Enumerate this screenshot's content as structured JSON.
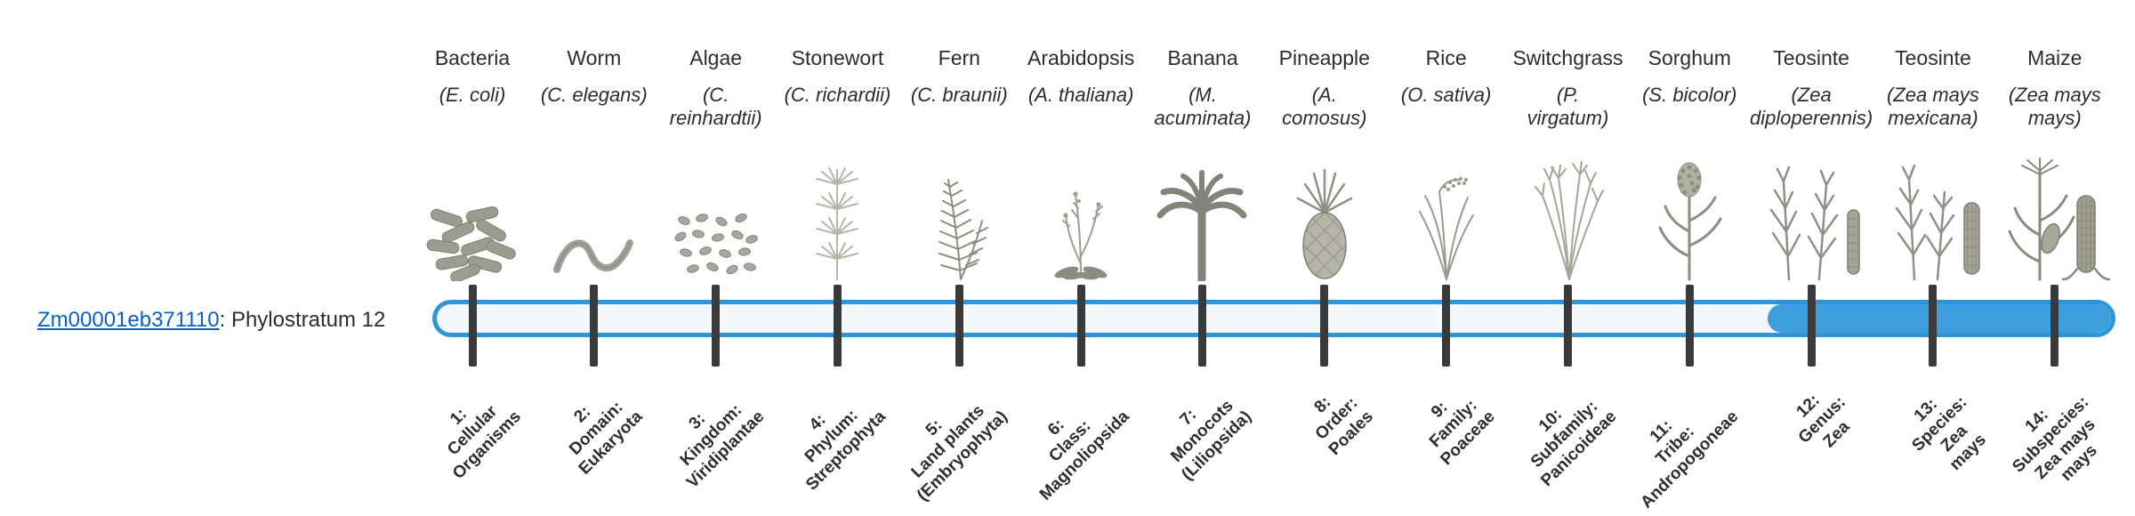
{
  "gene": {
    "id": "Zm00001eb371110",
    "suffix": ": Phylostratum 12",
    "phylostratum": 12
  },
  "colors": {
    "bar_outline": "#2e96d8",
    "bar_fill": "#3f9edd",
    "bar_background": "#f4f8fb",
    "tick": "#3a3a3a",
    "link": "#0a63c0",
    "text": "#2d2d2d"
  },
  "organisms": [
    {
      "common": "Bacteria",
      "sci": "(E. coli)",
      "icon": "bacteria-icon"
    },
    {
      "common": "Worm",
      "sci": "(C. elegans)",
      "icon": "worm-icon"
    },
    {
      "common": "Algae",
      "sci": "(C.\nreinhardtii)",
      "icon": "algae-icon"
    },
    {
      "common": "Stonewort",
      "sci": "(C. richardii)",
      "icon": "stonewort-icon"
    },
    {
      "common": "Fern",
      "sci": "(C. braunii)",
      "icon": "fern-icon"
    },
    {
      "common": "Arabidopsis",
      "sci": "(A. thaliana)",
      "icon": "arabidopsis-icon"
    },
    {
      "common": "Banana",
      "sci": "(M.\nacuminata)",
      "icon": "banana-icon"
    },
    {
      "common": "Pineapple",
      "sci": "(A.\ncomosus)",
      "icon": "pineapple-icon"
    },
    {
      "common": "Rice",
      "sci": "(O. sativa)",
      "icon": "rice-icon"
    },
    {
      "common": "Switchgrass",
      "sci": "(P.\nvirgatum)",
      "icon": "switchgrass-icon"
    },
    {
      "common": "Sorghum",
      "sci": "(S. bicolor)",
      "icon": "sorghum-icon"
    },
    {
      "common": "Teosinte",
      "sci": "(Zea\ndiploperennis)",
      "icon": "teosinte-diploperennis-icon"
    },
    {
      "common": "Teosinte",
      "sci": "(Zea mays\nmexicana)",
      "icon": "teosinte-mexicana-icon"
    },
    {
      "common": "Maize",
      "sci": "(Zea mays\nmays)",
      "icon": "maize-icon"
    }
  ],
  "strata": [
    {
      "label": "1:\nCellular\nOrganisms"
    },
    {
      "label": "2:\nDomain:\nEukaryota"
    },
    {
      "label": "3:\nKingdom:\nViridiplantae"
    },
    {
      "label": "4:\nPhylum:\nStreptophyta"
    },
    {
      "label": "5:\nLand plants\n(Embryophyta)"
    },
    {
      "label": "6:\nClass:\nMagnoliopsida"
    },
    {
      "label": "7:\nMonocots\n(Liliopsida)"
    },
    {
      "label": "8:\nOrder:\nPoales"
    },
    {
      "label": "9:\nFamily:\nPoaceae"
    },
    {
      "label": "10:\nSubfamily:\nPanicoideae"
    },
    {
      "label": "11:\nTribe:\nAndropogoneae"
    },
    {
      "label": "12:\nGenus:\nZea"
    },
    {
      "label": "13:\nSpecies:\nZea\nmays"
    },
    {
      "label": "14:\nSubspecies:\nZea mays\nmays"
    }
  ],
  "chart_data": {
    "type": "bar",
    "orientation": "horizontal",
    "title": "Zm00001eb371110: Phylostratum 12",
    "categories": [
      "1: Cellular Organisms",
      "2: Domain: Eukaryota",
      "3: Kingdom: Viridiplantae",
      "4: Phylum: Streptophyta",
      "5: Land plants (Embryophyta)",
      "6: Class: Magnoliopsida",
      "7: Monocots (Liliopsida)",
      "8: Order: Poales",
      "9: Family: Poaceae",
      "10: Subfamily: Panicoideae",
      "11: Tribe: Andropogoneae",
      "12: Genus: Zea",
      "13: Species: Zea mays",
      "14: Subspecies: Zea mays mays"
    ],
    "category_taxa": [
      "Bacteria (E. coli)",
      "Worm (C. elegans)",
      "Algae (C. reinhardtii)",
      "Stonewort (C. richardii)",
      "Fern (C. braunii)",
      "Arabidopsis (A. thaliana)",
      "Banana (M. acuminata)",
      "Pineapple (A. comosus)",
      "Rice (O. sativa)",
      "Switchgrass (P. virgatum)",
      "Sorghum (S. bicolor)",
      "Teosinte (Zea diploperennis)",
      "Teosinte (Zea mays mexicana)",
      "Maize (Zea mays mays)"
    ],
    "gene_phylostratum": 12,
    "highlighted_range": [
      12,
      14
    ],
    "axis_range": [
      1,
      14
    ],
    "legend": "none",
    "grid": false
  }
}
